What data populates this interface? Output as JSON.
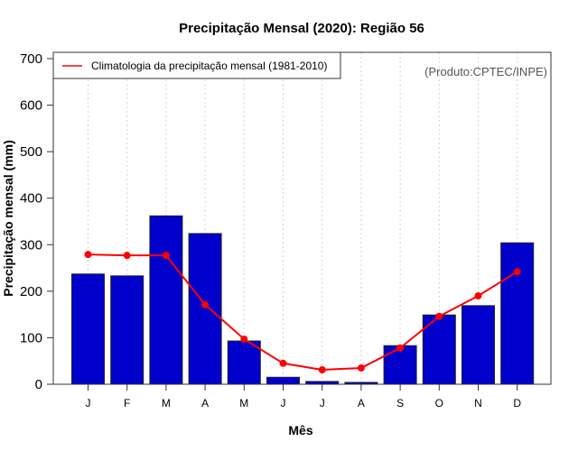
{
  "chart_data": {
    "type": "bar",
    "title": "Precipitação Mensal (2020): Região 56",
    "xlabel": "Mês",
    "ylabel": "Precipitação mensal (mm)",
    "ylim": [
      0,
      700
    ],
    "yticks": [
      0,
      100,
      200,
      300,
      400,
      500,
      600,
      700
    ],
    "categories": [
      "J",
      "F",
      "M",
      "A",
      "M",
      "J",
      "J",
      "A",
      "S",
      "O",
      "N",
      "D"
    ],
    "grid": "vertical dotted at each month",
    "series": [
      {
        "name": "Precipitação mensal 2020",
        "type": "bar",
        "color": "#0000cd",
        "values": [
          237,
          233,
          362,
          324,
          93,
          15,
          6,
          4,
          83,
          149,
          169,
          304
        ]
      },
      {
        "name": "Climatologia da precipitação mensal (1981-2010)",
        "type": "line",
        "color": "#ff0000",
        "values": [
          279,
          277,
          277,
          171,
          97,
          45,
          31,
          35,
          78,
          146,
          190,
          242
        ]
      }
    ],
    "legend": {
      "position": "top-left",
      "entries": [
        "Climatologia da precipitação mensal (1981-2010)"
      ]
    },
    "annotation": "(Produto:CPTEC/INPE)"
  }
}
